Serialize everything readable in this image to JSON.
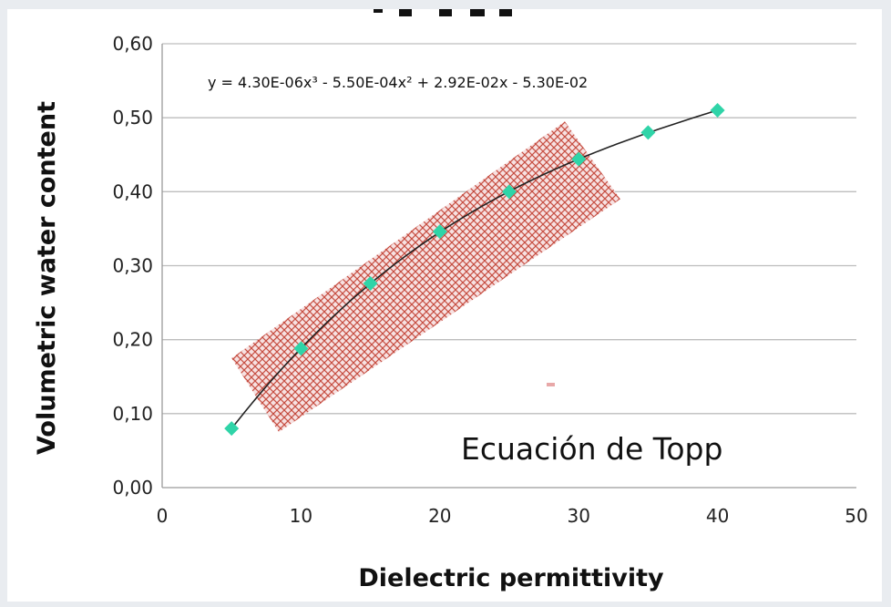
{
  "chart_data": {
    "type": "scatter",
    "title": "",
    "xlabel": "Dielectric permittivity",
    "ylabel": "Volumetric water content",
    "xlim": [
      0,
      50
    ],
    "ylim": [
      0,
      0.6
    ],
    "x_ticks": [
      0,
      10,
      20,
      30,
      40,
      50
    ],
    "y_ticks": [
      0,
      0.1,
      0.2,
      0.3,
      0.4,
      0.5,
      0.6
    ],
    "x_tick_labels": [
      "0",
      "10",
      "20",
      "30",
      "40",
      "50"
    ],
    "y_tick_labels": [
      "0,00",
      "0,10",
      "0,20",
      "0,30",
      "0,40",
      "0,50",
      "0,60"
    ],
    "grid": "horizontal",
    "series": [
      {
        "x": [
          5,
          10,
          15,
          20,
          25,
          30,
          35,
          40
        ],
        "y": [
          0.08,
          0.188,
          0.276,
          0.346,
          0.4,
          0.444,
          0.48,
          0.51
        ],
        "marker": "diamond",
        "color": "#2fd4a8"
      }
    ],
    "trendline": {
      "type": "polynomial",
      "coefficients": [
        4.3e-06,
        -0.00055,
        0.0292,
        -0.053
      ],
      "x_range": [
        5,
        40
      ],
      "color": "#222222",
      "equation_label": "y = 4.30E-06x³ - 5.50E-04x² + 2.92E-02x - 5.30E-02"
    },
    "annotations": [
      {
        "text": "Ecuación de Topp"
      }
    ],
    "highlight_band": {
      "pattern": "cross-hatch",
      "color": "#c0392b",
      "corners": [
        [
          5,
          0.175
        ],
        [
          29,
          0.495
        ],
        [
          33,
          0.39
        ],
        [
          8.4,
          0.075
        ]
      ]
    }
  },
  "colors": {
    "background": "#e9ecf0",
    "plot_background": "#ffffff",
    "grid": "#bdbdbd",
    "marker": "#2fd4a8",
    "hatch": "#c0392b"
  }
}
